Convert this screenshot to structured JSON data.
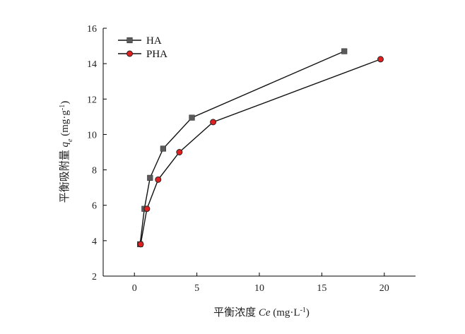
{
  "chart_data": {
    "type": "line",
    "xlabel": {
      "main": "平衡浓度 ",
      "var": "Ce",
      "unit_pre": " (mg·L",
      "unit_sup": "-1",
      "unit_post": ")"
    },
    "ylabel": {
      "main": "平衡吸附量 ",
      "var": "q",
      "var_sub": "e",
      "unit_pre": " (mg·g",
      "unit_sup": "-1",
      "unit_post": ")"
    },
    "xlim": [
      -2.5,
      22.5
    ],
    "ylim": [
      2,
      16
    ],
    "x_ticks": [
      0,
      5,
      10,
      15,
      20
    ],
    "y_ticks": [
      2,
      4,
      6,
      8,
      10,
      12,
      14,
      16
    ],
    "grid": false,
    "legend_position": "top-left",
    "series": [
      {
        "name": "HA",
        "marker": "square",
        "marker_color": "#5a5a5a",
        "x": [
          0.45,
          0.8,
          1.25,
          2.3,
          4.6,
          16.8
        ],
        "y": [
          3.8,
          5.8,
          7.55,
          9.2,
          10.95,
          14.7
        ]
      },
      {
        "name": "PHA",
        "marker": "circle",
        "marker_color": "#e02020",
        "x": [
          0.5,
          1.0,
          1.9,
          3.6,
          6.3,
          19.7
        ],
        "y": [
          3.8,
          5.8,
          7.45,
          9.0,
          10.7,
          14.25
        ]
      }
    ]
  }
}
